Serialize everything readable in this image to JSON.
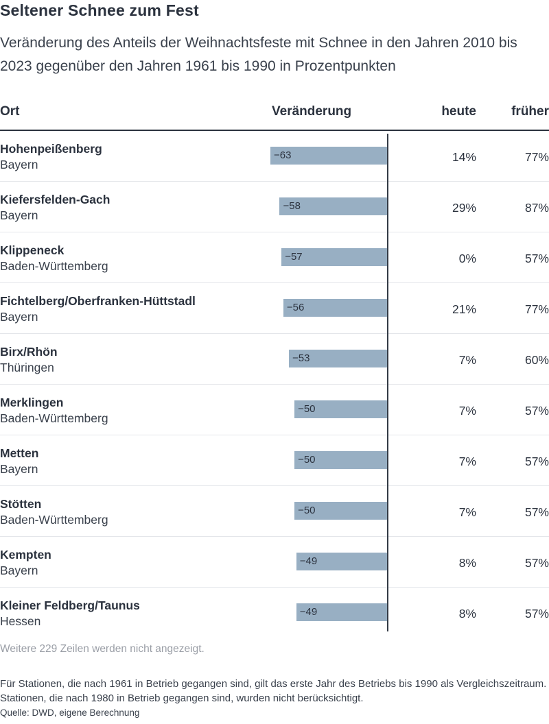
{
  "title": "Seltener Schnee zum Fest",
  "subtitle": "Veränderung des Anteils der Weihnachtsfeste mit Schnee in den Jahren 2010 bis 2023 gegenüber den Jahren 1961 bis 1990 in Prozentpunkten",
  "columns": {
    "ort": "Ort",
    "veraenderung": "Veränderung",
    "heute": "heute",
    "frueher": "früher"
  },
  "colors": {
    "bar": "#98afc3",
    "text": "#2b323e",
    "muted": "#9a9ea6"
  },
  "chart_data": {
    "type": "table",
    "value_domain": [
      -63,
      0
    ],
    "rows": [
      {
        "ort": "Hohenpeißenberg",
        "land": "Bayern",
        "veraenderung": -63,
        "veraenderung_label": "−63",
        "heute": "14%",
        "frueher": "77%"
      },
      {
        "ort": "Kiefersfelden-Gach",
        "land": "Bayern",
        "veraenderung": -58,
        "veraenderung_label": "−58",
        "heute": "29%",
        "frueher": "87%"
      },
      {
        "ort": "Klippeneck",
        "land": "Baden-Württemberg",
        "veraenderung": -57,
        "veraenderung_label": "−57",
        "heute": "0%",
        "frueher": "57%"
      },
      {
        "ort": "Fichtelberg/Oberfranken-Hüttstadl",
        "land": "Bayern",
        "veraenderung": -56,
        "veraenderung_label": "−56",
        "heute": "21%",
        "frueher": "77%"
      },
      {
        "ort": "Birx/Rhön",
        "land": "Thüringen",
        "veraenderung": -53,
        "veraenderung_label": "−53",
        "heute": "7%",
        "frueher": "60%"
      },
      {
        "ort": "Merklingen",
        "land": "Baden-Württemberg",
        "veraenderung": -50,
        "veraenderung_label": "−50",
        "heute": "7%",
        "frueher": "57%"
      },
      {
        "ort": "Metten",
        "land": "Bayern",
        "veraenderung": -50,
        "veraenderung_label": "−50",
        "heute": "7%",
        "frueher": "57%"
      },
      {
        "ort": "Stötten",
        "land": "Baden-Württemberg",
        "veraenderung": -50,
        "veraenderung_label": "−50",
        "heute": "7%",
        "frueher": "57%"
      },
      {
        "ort": "Kempten",
        "land": "Bayern",
        "veraenderung": -49,
        "veraenderung_label": "−49",
        "heute": "8%",
        "frueher": "57%"
      },
      {
        "ort": "Kleiner Feldberg/Taunus",
        "land": "Hessen",
        "veraenderung": -49,
        "veraenderung_label": "−49",
        "heute": "8%",
        "frueher": "57%"
      }
    ]
  },
  "more_rows": "Weitere 229 Zeilen werden nicht angezeigt.",
  "note": "Für Stationen, die nach 1961 in Betrieb gegangen sind, gilt das erste Jahr des Betriebs bis 1990 als Vergleichszeitraum. Stationen, die nach 1980 in Betrieb gegangen sind, wurden nicht berücksichtigt.",
  "source": "Quelle: DWD, eigene Berechnung"
}
